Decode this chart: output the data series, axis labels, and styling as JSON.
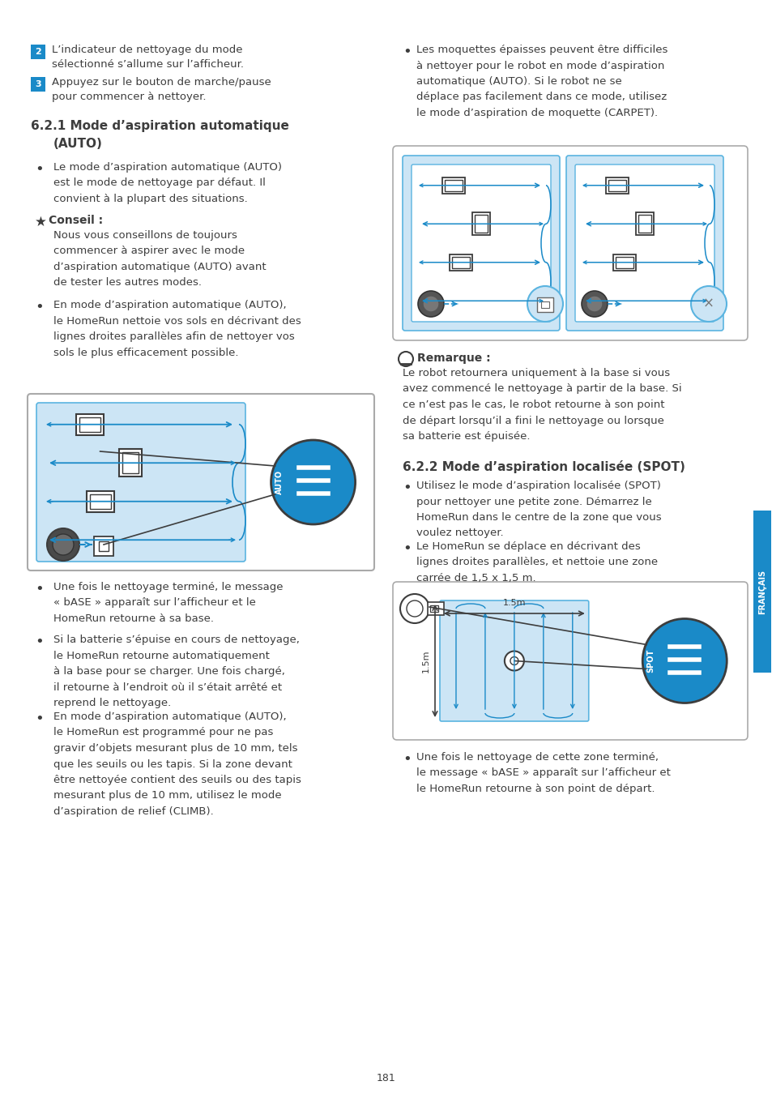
{
  "bg_color": "#ffffff",
  "text_color": "#3d3d3d",
  "blue_color": "#1a8ac8",
  "light_blue": "#cce5f5",
  "blue_badge": "#1a8ac8",
  "page_number": "181",
  "sidebar_text": "FRANÇAIS",
  "step2_text1": "L’indicateur de nettoyage du mode",
  "step2_text2": "sélectionné s’allume sur l’afficheur.",
  "step3_text1": "Appuyez sur le bouton de marche/pause",
  "step3_text2": "pour commencer à nettoyer.",
  "right_bullet1": "Les moquettes épaisses peuvent être difficiles\nà nettoyer pour le robot en mode d’aspiration\nautomatique (AUTO). Si le robot ne se\ndéplace pas facilement dans ce mode, utilisez\nle mode d’aspiration de moquette (CARPET).",
  "remark_text": "Le robot retournera uniquement à la base si vous\navez commencé le nettoyage à partir de la base. Si\nce n’est pas le cas, le robot retourne à son point\nde départ lorsqu’il a fini le nettoyage ou lorsque\nsa batterie est épuisée.",
  "bullet3_621": "Une fois le nettoyage terminé, le message\n« bASE » apparaît sur l’afficheur et le\nHomeRun retourne à sa base.",
  "bullet4_621": "Si la batterie s’épuise en cours de nettoyage,\nle HomeRun retourne automatiquement\nà la base pour se charger. Une fois chargé,\nil retourne à l’endroit où il s’était arrêté et\nreprend le nettoyage.",
  "bullet5_621": "En mode d’aspiration automatique (AUTO),\nle HomeRun est programmé pour ne pas\ngravir d’objets mesurant plus de 10 mm, tels\nque les seuils ou les tapis. Si la zone devant\nêtre nettoyée contient des seuils ou des tapis\nmesurant plus de 10 mm, utilisez le mode\nd’aspiration de relief (CLIMB).",
  "bullet1_622": "Utilisez le mode d’aspiration localisée (SPOT)\npour nettoyer une petite zone. Démarrez le\nHomeRun dans le centre de la zone que vous\nvoulez nettoyer.",
  "bullet2_622": "Le HomeRun se déplace en décrivant des\nlignes droites parallèles, et nettoie une zone\ncarrée de 1,5 x 1,5 m.",
  "bullet3_622": "Une fois le nettoyage de cette zone terminé,\nle message « bASE » apparaît sur l’afficheur et\nle HomeRun retourne à son point de départ."
}
